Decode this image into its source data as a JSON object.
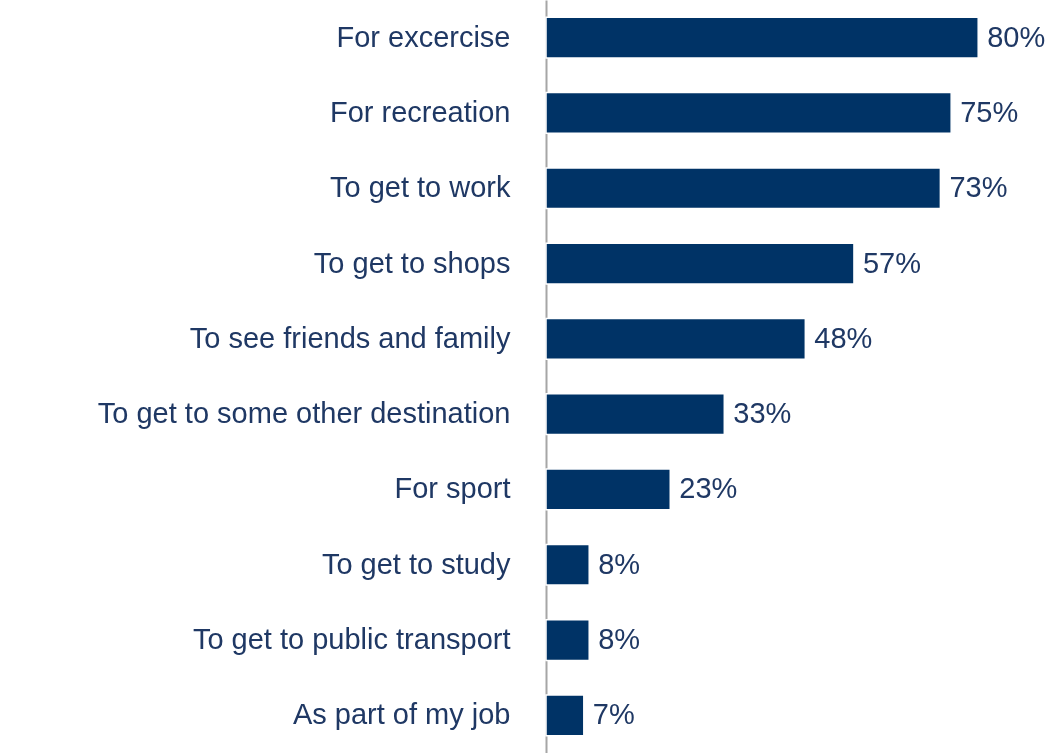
{
  "chart_data": {
    "type": "bar",
    "orientation": "horizontal",
    "color": "#003366",
    "categories": [
      "For excercise",
      "For recreation",
      "To get to work",
      "To get to shops",
      "To see friends and family",
      "To get to some other destination",
      "For sport",
      "To get to study",
      "To get to public transport",
      "As part of my job"
    ],
    "values": [
      80,
      75,
      73,
      57,
      48,
      33,
      23,
      8,
      8,
      7
    ],
    "value_labels": [
      "80%",
      "75%",
      "73%",
      "57%",
      "48%",
      "33%",
      "23%",
      "8%",
      "8%",
      "7%"
    ]
  }
}
